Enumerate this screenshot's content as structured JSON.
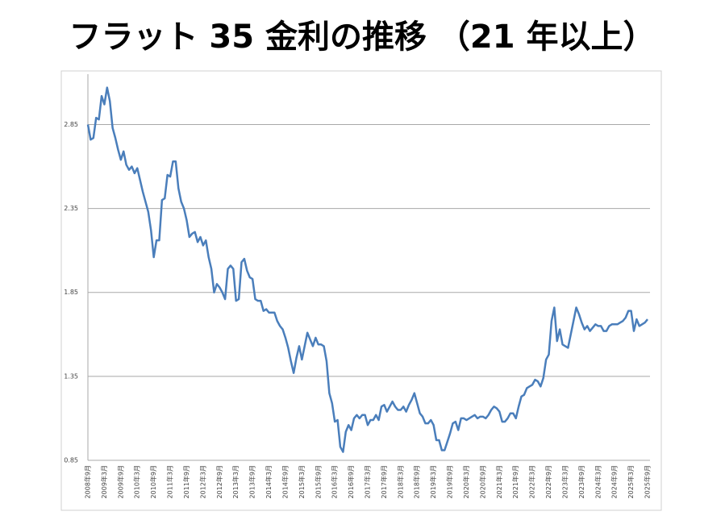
{
  "chart_data": {
    "type": "line",
    "title": "フラット 35 金利の推移 （21 年以上）",
    "categories": [
      "2008年9月",
      null,
      null,
      null,
      null,
      null,
      "2009年3月",
      null,
      null,
      null,
      null,
      null,
      "2009年9月",
      null,
      null,
      null,
      null,
      null,
      "2010年3月",
      null,
      null,
      null,
      null,
      null,
      "2010年9月",
      null,
      null,
      null,
      null,
      null,
      "2011年3月",
      null,
      null,
      null,
      null,
      null,
      "2011年9月",
      null,
      null,
      null,
      null,
      null,
      "2012年3月",
      null,
      null,
      null,
      null,
      null,
      "2012年9月",
      null,
      null,
      null,
      null,
      null,
      "2013年3月",
      null,
      null,
      null,
      null,
      null,
      "2013年9月",
      null,
      null,
      null,
      null,
      null,
      "2014年3月",
      null,
      null,
      null,
      null,
      null,
      "2014年9月",
      null,
      null,
      null,
      null,
      null,
      "2015年3月",
      null,
      null,
      null,
      null,
      null,
      "2015年9月",
      null,
      null,
      null,
      null,
      null,
      "2016年3月",
      null,
      null,
      null,
      null,
      null,
      "2016年9月",
      null,
      null,
      null,
      null,
      null,
      "2017年3月",
      null,
      null,
      null,
      null,
      null,
      "2017年9月",
      null,
      null,
      null,
      null,
      null,
      "2018年3月",
      null,
      null,
      null,
      null,
      null,
      "2018年9月",
      null,
      null,
      null,
      null,
      null,
      "2019年3月",
      null,
      null,
      null,
      null,
      null,
      "2019年9月",
      null,
      null,
      null,
      null,
      null,
      "2020年3月",
      null,
      null,
      null,
      null,
      null,
      "2020年9月",
      null,
      null,
      null,
      null,
      null,
      "2021年3月",
      null,
      null,
      null,
      null,
      null,
      "2021年9月",
      null,
      null,
      null,
      null,
      null,
      "2022年3月",
      null,
      null,
      null,
      null,
      null,
      "2022年9月",
      null,
      null,
      null,
      null,
      null,
      "2023年3月",
      null,
      null,
      null,
      null,
      null,
      "2023年9月",
      null,
      null,
      null,
      null,
      null,
      "2024年3月",
      null,
      null,
      null,
      null,
      null,
      "2024年9月",
      null,
      null,
      null,
      null,
      null,
      "2025年3月",
      null,
      null,
      null,
      null,
      null,
      "2025年9月"
    ],
    "series": [
      {
        "color": "#4a7ebb",
        "values": [
          2.85,
          2.76,
          2.77,
          2.89,
          2.88,
          3.02,
          2.97,
          3.07,
          2.99,
          2.83,
          2.77,
          2.7,
          2.64,
          2.69,
          2.61,
          2.58,
          2.6,
          2.56,
          2.59,
          2.52,
          2.45,
          2.39,
          2.33,
          2.22,
          2.06,
          2.16,
          2.16,
          2.4,
          2.41,
          2.55,
          2.54,
          2.63,
          2.63,
          2.47,
          2.39,
          2.35,
          2.28,
          2.18,
          2.2,
          2.21,
          2.15,
          2.18,
          2.13,
          2.16,
          2.06,
          1.99,
          1.85,
          1.9,
          1.88,
          1.85,
          1.81,
          1.99,
          2.01,
          1.99,
          1.8,
          1.81,
          2.03,
          2.05,
          1.98,
          1.94,
          1.93,
          1.81,
          1.8,
          1.8,
          1.74,
          1.75,
          1.73,
          1.73,
          1.73,
          1.68,
          1.65,
          1.63,
          1.58,
          1.52,
          1.44,
          1.37,
          1.46,
          1.53,
          1.45,
          1.53,
          1.61,
          1.57,
          1.53,
          1.58,
          1.54,
          1.54,
          1.53,
          1.44,
          1.25,
          1.19,
          1.08,
          1.09,
          0.93,
          0.9,
          1.02,
          1.06,
          1.03,
          1.1,
          1.12,
          1.1,
          1.12,
          1.12,
          1.06,
          1.09,
          1.09,
          1.12,
          1.09,
          1.17,
          1.18,
          1.14,
          1.17,
          1.2,
          1.17,
          1.15,
          1.15,
          1.17,
          1.14,
          1.18,
          1.21,
          1.25,
          1.19,
          1.13,
          1.11,
          1.07,
          1.07,
          1.09,
          1.06,
          0.97,
          0.97,
          0.91,
          0.91,
          0.96,
          1.01,
          1.07,
          1.08,
          1.03,
          1.1,
          1.1,
          1.09,
          1.1,
          1.11,
          1.12,
          1.1,
          1.11,
          1.11,
          1.1,
          1.12,
          1.15,
          1.17,
          1.16,
          1.14,
          1.08,
          1.08,
          1.1,
          1.13,
          1.13,
          1.1,
          1.17,
          1.23,
          1.24,
          1.28,
          1.29,
          1.3,
          1.33,
          1.32,
          1.29,
          1.34,
          1.45,
          1.48,
          1.68,
          1.76,
          1.56,
          1.63,
          1.54,
          1.53,
          1.52,
          1.6,
          1.68,
          1.76,
          1.72,
          1.67,
          1.63,
          1.65,
          1.62,
          1.64,
          1.66,
          1.65,
          1.65,
          1.62,
          1.62,
          1.65,
          1.66,
          1.66,
          1.66,
          1.67,
          1.68,
          1.7,
          1.74,
          1.74,
          1.62,
          1.69,
          1.65,
          1.66,
          1.67,
          1.69
        ]
      }
    ],
    "ylim": [
      0.85,
      3.15
    ],
    "yticks": [
      0.85,
      1.35,
      1.85,
      2.35,
      2.85
    ],
    "grid": true
  }
}
